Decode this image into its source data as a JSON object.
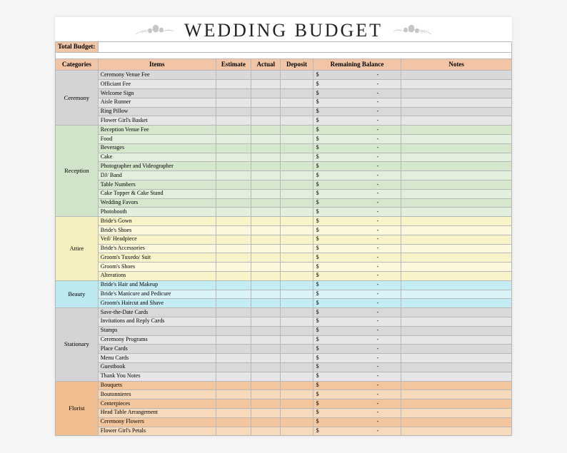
{
  "title": "WEDDING BUDGET",
  "total_budget_label": "Total Budget:",
  "headers": {
    "categories": "Categories",
    "items": "Items",
    "estimate": "Estimate",
    "actual": "Actual",
    "deposit": "Deposit",
    "remaining": "Remaining Balance",
    "notes": "Notes"
  },
  "header_color": "#f2c5a6",
  "currency_symbol": "$",
  "empty_marker": "-",
  "sections": [
    {
      "name": "Ceremony",
      "color_cat": "#d4d4d7",
      "color_row": "#d9d9dc",
      "color_alt": "#e6e6e8",
      "items": [
        "Ceremony Venue Fee",
        "Officiant Fee",
        "Welcome Sign",
        "Aisle Runner",
        "Ring Pillow",
        "Flower Girl's Basket"
      ]
    },
    {
      "name": "Reception",
      "color_cat": "#cfe4c8",
      "color_row": "#d5e8ce",
      "color_alt": "#e2efdc",
      "items": [
        "Reception Venue Fee",
        "Food",
        "Beverages",
        "Cake",
        "Photographer and Videographer",
        "DJ/ Band",
        "Table Numbers",
        "Cake Topper & Cake Stand",
        "Wedding Favors",
        "Photobooth"
      ]
    },
    {
      "name": "Attire",
      "color_cat": "#f6f0c0",
      "color_row": "#f8f3c9",
      "color_alt": "#fbf8dd",
      "items": [
        "Bride's Gown",
        "Bride's Shoes",
        "Veil/ Headpiece",
        "Bride's Accessories",
        "Groom's Tuxedo/ Suit",
        "Groom's Shoes",
        "Alterations"
      ]
    },
    {
      "name": "Beauty",
      "color_cat": "#bce8f0",
      "color_row": "#c4ecf3",
      "color_alt": "#d9f3f8",
      "items": [
        "Bride's Hair and Makeup",
        "Bride's Manicure and Pedicure",
        "Groom's Haircut and Shave"
      ]
    },
    {
      "name": "Stationary",
      "color_cat": "#d4d4d7",
      "color_row": "#d9d9dc",
      "color_alt": "#e6e6e8",
      "items": [
        "Save-the-Date Cards",
        "Invitations and Reply Cards",
        "Stamps",
        "Ceremony Programs",
        "Place Cards",
        "Menu Cards",
        "Guestbook",
        "Thank You Notes"
      ]
    },
    {
      "name": "Florist",
      "color_cat": "#f0bd90",
      "color_row": "#f3c69d",
      "color_alt": "#f7d9bc",
      "items": [
        "Bouquets",
        "Boutonnieres",
        "Centerpieces",
        "Head Table Arrangement",
        "Ceremony Flowers",
        "Flower Girl's Petals"
      ]
    }
  ]
}
